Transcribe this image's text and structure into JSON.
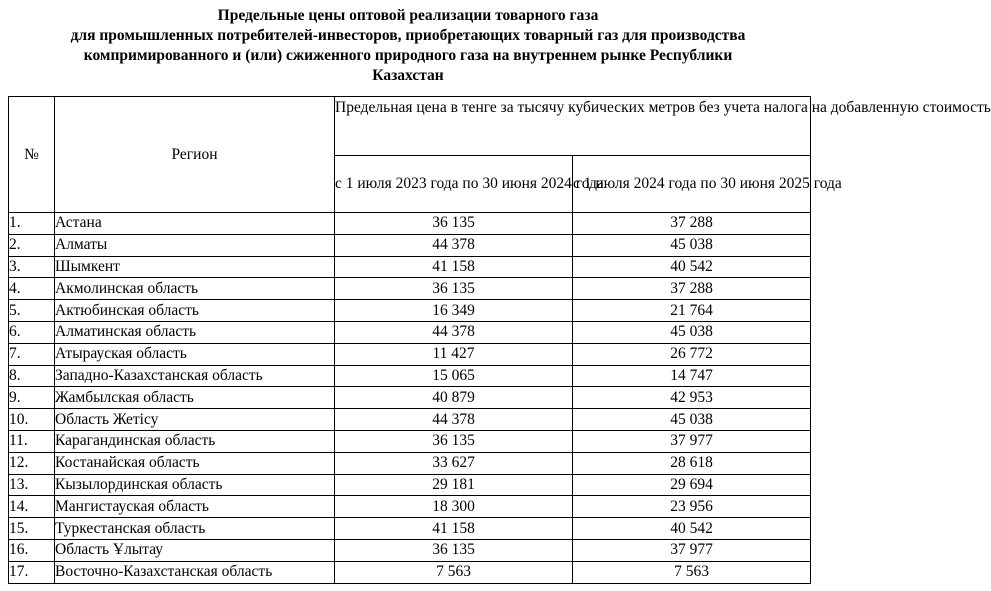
{
  "title": {
    "line1": "Предельные цены оптовой реализации товарного газа",
    "line2": "для промышленных потребителей-инвесторов, приобретающих товарный газ для производства",
    "line3": "компримированного и (или) сжиженного природного газа на внутреннем рынке Республики",
    "line4": "Казахстан"
  },
  "header": {
    "num": "№",
    "region": "Регион",
    "price_main": "Предельная цена в тенге за тысячу кубических метров без учета налога на добавленную стоимость",
    "period1": "с 1 июля 2023 года по 30 июня 2024 года",
    "period2": "с 1 июля 2024 года по 30 июня 2025 года"
  },
  "rows": [
    {
      "num": "1.",
      "region": "Астана",
      "p1": "36 135",
      "p2": "37 288"
    },
    {
      "num": "2.",
      "region": "Алматы",
      "p1": "44 378",
      "p2": "45 038"
    },
    {
      "num": "3.",
      "region": "Шымкент",
      "p1": "41 158",
      "p2": "40 542"
    },
    {
      "num": "4.",
      "region": "Акмолинская область",
      "p1": "36 135",
      "p2": "37 288"
    },
    {
      "num": "5.",
      "region": "Актюбинская область",
      "p1": "16 349",
      "p2": "21 764"
    },
    {
      "num": "6.",
      "region": "Алматинская область",
      "p1": "44 378",
      "p2": "45 038"
    },
    {
      "num": "7.",
      "region": "Атырауская область",
      "p1": "11 427",
      "p2": "26 772"
    },
    {
      "num": "8.",
      "region": "Западно-Казахстанская область",
      "p1": "15 065",
      "p2": "14 747"
    },
    {
      "num": "9.",
      "region": "Жамбылская область",
      "p1": "40 879",
      "p2": "42 953"
    },
    {
      "num": "10.",
      "region": "Область Жетісу",
      "p1": "44 378",
      "p2": "45 038"
    },
    {
      "num": "11.",
      "region": "Карагандинская область",
      "p1": "36 135",
      "p2": "37 977"
    },
    {
      "num": "12.",
      "region": "Костанайская область",
      "p1": "33 627",
      "p2": "28 618"
    },
    {
      "num": "13.",
      "region": "Кызылординская область",
      "p1": "29 181",
      "p2": "29 694"
    },
    {
      "num": "14.",
      "region": "Мангистауская область",
      "p1": "18 300",
      "p2": "23 956"
    },
    {
      "num": "15.",
      "region": "Туркестанская область",
      "p1": "41 158",
      "p2": "40 542"
    },
    {
      "num": "16.",
      "region": "Область Ұлытау",
      "p1": "36 135",
      "p2": "37 977"
    },
    {
      "num": "17.",
      "region": "Восточно-Казахстанская область",
      "p1": "7 563",
      "p2": "7 563"
    }
  ]
}
